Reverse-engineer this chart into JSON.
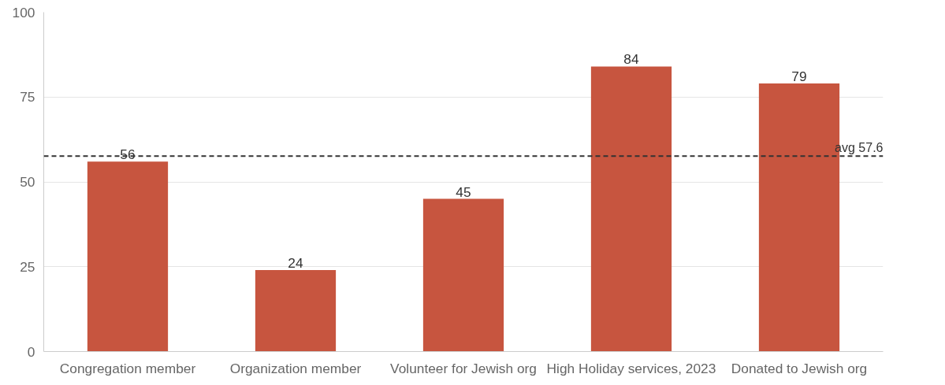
{
  "chart_data": {
    "type": "bar",
    "categories": [
      "Congregation member",
      "Organization member",
      "Volunteer for Jewish org",
      "High Holiday services, 2023",
      "Donated to Jewish org"
    ],
    "values": [
      56,
      24,
      45,
      84,
      79
    ],
    "color": "#c7553f",
    "ylim": [
      0,
      100
    ],
    "yticks": [
      0,
      25,
      50,
      75,
      100
    ],
    "grid": "y",
    "data_labels": true,
    "ref_lines": [
      {
        "axis": "y",
        "value": 57.6,
        "label": "avg 57.6",
        "color": "#333333",
        "line_style": "dashed"
      }
    ]
  }
}
